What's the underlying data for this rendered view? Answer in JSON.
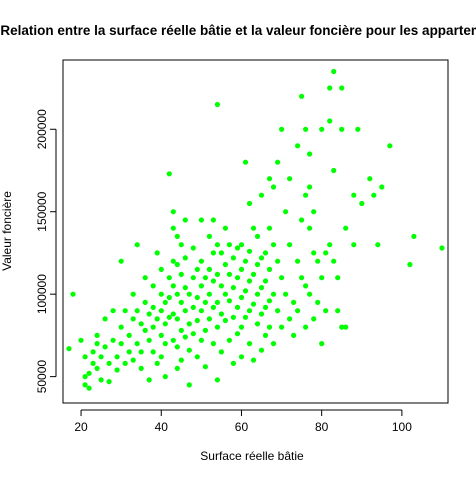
{
  "chart_data": {
    "type": "scatter",
    "title": "Relation entre la surface réelle bâtie et la valeur foncière pour les appartements",
    "xlabel": "Surface réelle bâtie",
    "ylabel": "Valeur foncière",
    "xlim": [
      15.5,
      111.5
    ],
    "ylim": [
      34000,
      242000
    ],
    "x_ticks": [
      20,
      40,
      60,
      80,
      100
    ],
    "y_ticks": [
      50000,
      100000,
      150000,
      200000
    ],
    "x_tick_labels": [
      "20",
      "40",
      "60",
      "80",
      "100"
    ],
    "y_tick_labels": [
      "50000",
      "100000",
      "150000",
      "200000"
    ],
    "grid": false,
    "legend": "none",
    "point_color": "#00ff00",
    "points": [
      [
        17,
        67000
      ],
      [
        18,
        100000
      ],
      [
        20,
        72000
      ],
      [
        21,
        62000
      ],
      [
        21,
        45000
      ],
      [
        21,
        50000
      ],
      [
        22,
        52000
      ],
      [
        22,
        43000
      ],
      [
        23,
        58000
      ],
      [
        23,
        65000
      ],
      [
        24,
        70000
      ],
      [
        24,
        75000
      ],
      [
        24,
        55000
      ],
      [
        25,
        62000
      ],
      [
        25,
        48000
      ],
      [
        26,
        85000
      ],
      [
        26,
        68000
      ],
      [
        27,
        58000
      ],
      [
        27,
        47000
      ],
      [
        28,
        72000
      ],
      [
        28,
        90000
      ],
      [
        29,
        62000
      ],
      [
        29,
        54000
      ],
      [
        30,
        120000
      ],
      [
        30,
        80000
      ],
      [
        30,
        70000
      ],
      [
        31,
        90000
      ],
      [
        31,
        58000
      ],
      [
        32,
        65000
      ],
      [
        32,
        75000
      ],
      [
        33,
        100000
      ],
      [
        33,
        85000
      ],
      [
        33,
        60000
      ],
      [
        34,
        130000
      ],
      [
        34,
        90000
      ],
      [
        34,
        70000
      ],
      [
        35,
        82000
      ],
      [
        35,
        55000
      ],
      [
        35,
        65000
      ],
      [
        36,
        110000
      ],
      [
        36,
        95000
      ],
      [
        36,
        78000
      ],
      [
        37,
        88000
      ],
      [
        37,
        48000
      ],
      [
        37,
        72000
      ],
      [
        38,
        105000
      ],
      [
        38,
        92000
      ],
      [
        38,
        80000
      ],
      [
        38,
        65000
      ],
      [
        39,
        125000
      ],
      [
        39,
        85000
      ],
      [
        39,
        58000
      ],
      [
        40,
        115000
      ],
      [
        40,
        100000
      ],
      [
        40,
        90000
      ],
      [
        40,
        75000
      ],
      [
        40,
        62000
      ],
      [
        41,
        95000
      ],
      [
        41,
        82000
      ],
      [
        41,
        50000
      ],
      [
        41,
        70000
      ],
      [
        42,
        173000
      ],
      [
        42,
        110000
      ],
      [
        42,
        98000
      ],
      [
        42,
        86000
      ],
      [
        43,
        150000
      ],
      [
        43,
        140000
      ],
      [
        43,
        120000
      ],
      [
        43,
        105000
      ],
      [
        43,
        88000
      ],
      [
        43,
        72000
      ],
      [
        44,
        135000
      ],
      [
        44,
        118000
      ],
      [
        44,
        100000
      ],
      [
        44,
        85000
      ],
      [
        44,
        68000
      ],
      [
        44,
        55000
      ],
      [
        45,
        130000
      ],
      [
        45,
        112000
      ],
      [
        45,
        95000
      ],
      [
        45,
        78000
      ],
      [
        45,
        60000
      ],
      [
        46,
        145000
      ],
      [
        46,
        122000
      ],
      [
        46,
        104000
      ],
      [
        46,
        90000
      ],
      [
        46,
        74000
      ],
      [
        47,
        100000
      ],
      [
        47,
        82000
      ],
      [
        47,
        66000
      ],
      [
        47,
        45000
      ],
      [
        48,
        128000
      ],
      [
        48,
        110000
      ],
      [
        48,
        92000
      ],
      [
        48,
        76000
      ],
      [
        49,
        115000
      ],
      [
        49,
        98000
      ],
      [
        49,
        84000
      ],
      [
        49,
        62000
      ],
      [
        50,
        145000
      ],
      [
        50,
        120000
      ],
      [
        50,
        105000
      ],
      [
        50,
        90000
      ],
      [
        50,
        72000
      ],
      [
        51,
        110000
      ],
      [
        51,
        95000
      ],
      [
        51,
        78000
      ],
      [
        51,
        56000
      ],
      [
        52,
        135000
      ],
      [
        52,
        115000
      ],
      [
        52,
        100000
      ],
      [
        52,
        85000
      ],
      [
        53,
        145000
      ],
      [
        53,
        125000
      ],
      [
        53,
        108000
      ],
      [
        53,
        92000
      ],
      [
        53,
        70000
      ],
      [
        54,
        215000
      ],
      [
        54,
        130000
      ],
      [
        54,
        112000
      ],
      [
        54,
        95000
      ],
      [
        54,
        80000
      ],
      [
        54,
        48000
      ],
      [
        55,
        125000
      ],
      [
        55,
        105000
      ],
      [
        55,
        88000
      ],
      [
        55,
        65000
      ],
      [
        56,
        140000
      ],
      [
        56,
        118000
      ],
      [
        56,
        100000
      ],
      [
        56,
        84000
      ],
      [
        57,
        130000
      ],
      [
        57,
        112000
      ],
      [
        57,
        96000
      ],
      [
        57,
        72000
      ],
      [
        58,
        122000
      ],
      [
        58,
        104000
      ],
      [
        58,
        86000
      ],
      [
        58,
        58000
      ],
      [
        59,
        128000
      ],
      [
        59,
        110000
      ],
      [
        59,
        92000
      ],
      [
        59,
        76000
      ],
      [
        60,
        130000
      ],
      [
        60,
        115000
      ],
      [
        60,
        98000
      ],
      [
        60,
        80000
      ],
      [
        60,
        62000
      ],
      [
        61,
        180000
      ],
      [
        61,
        120000
      ],
      [
        61,
        102000
      ],
      [
        61,
        86000
      ],
      [
        62,
        155000
      ],
      [
        62,
        126000
      ],
      [
        62,
        108000
      ],
      [
        62,
        90000
      ],
      [
        62,
        70000
      ],
      [
        63,
        140000
      ],
      [
        63,
        112000
      ],
      [
        63,
        94000
      ],
      [
        63,
        60000
      ],
      [
        64,
        135000
      ],
      [
        64,
        118000
      ],
      [
        64,
        100000
      ],
      [
        64,
        82000
      ],
      [
        65,
        160000
      ],
      [
        65,
        122000
      ],
      [
        65,
        104000
      ],
      [
        65,
        88000
      ],
      [
        65,
        66000
      ],
      [
        66,
        125000
      ],
      [
        66,
        108000
      ],
      [
        66,
        92000
      ],
      [
        66,
        75000
      ],
      [
        67,
        170000
      ],
      [
        67,
        140000
      ],
      [
        67,
        115000
      ],
      [
        67,
        96000
      ],
      [
        67,
        80000
      ],
      [
        68,
        165000
      ],
      [
        68,
        130000
      ],
      [
        68,
        100000
      ],
      [
        68,
        70000
      ],
      [
        69,
        180000
      ],
      [
        69,
        120000
      ],
      [
        69,
        90000
      ],
      [
        70,
        200000
      ],
      [
        70,
        110000
      ],
      [
        70,
        80000
      ],
      [
        71,
        150000
      ],
      [
        71,
        100000
      ],
      [
        72,
        170000
      ],
      [
        72,
        130000
      ],
      [
        72,
        85000
      ],
      [
        73,
        95000
      ],
      [
        73,
        75000
      ],
      [
        74,
        190000
      ],
      [
        74,
        120000
      ],
      [
        74,
        90000
      ],
      [
        75,
        220000
      ],
      [
        75,
        145000
      ],
      [
        75,
        110000
      ],
      [
        76,
        200000
      ],
      [
        76,
        160000
      ],
      [
        76,
        105000
      ],
      [
        76,
        80000
      ],
      [
        77,
        185000
      ],
      [
        77,
        165000
      ],
      [
        77,
        140000
      ],
      [
        77,
        100000
      ],
      [
        78,
        150000
      ],
      [
        78,
        125000
      ],
      [
        78,
        85000
      ],
      [
        79,
        120000
      ],
      [
        79,
        95000
      ],
      [
        80,
        200000
      ],
      [
        80,
        110000
      ],
      [
        80,
        70000
      ],
      [
        81,
        125000
      ],
      [
        81,
        90000
      ],
      [
        82,
        225000
      ],
      [
        82,
        205000
      ],
      [
        82,
        130000
      ],
      [
        83,
        235000
      ],
      [
        83,
        175000
      ],
      [
        83,
        120000
      ],
      [
        84,
        110000
      ],
      [
        84,
        90000
      ],
      [
        85,
        200000
      ],
      [
        85,
        225000
      ],
      [
        85,
        80000
      ],
      [
        86,
        140000
      ],
      [
        86,
        80000
      ],
      [
        88,
        160000
      ],
      [
        88,
        130000
      ],
      [
        89,
        200000
      ],
      [
        90,
        155000
      ],
      [
        92,
        170000
      ],
      [
        93,
        160000
      ],
      [
        94,
        130000
      ],
      [
        95,
        165000
      ],
      [
        97,
        190000
      ],
      [
        102,
        118000
      ],
      [
        103,
        135000
      ],
      [
        110,
        128000
      ]
    ]
  }
}
